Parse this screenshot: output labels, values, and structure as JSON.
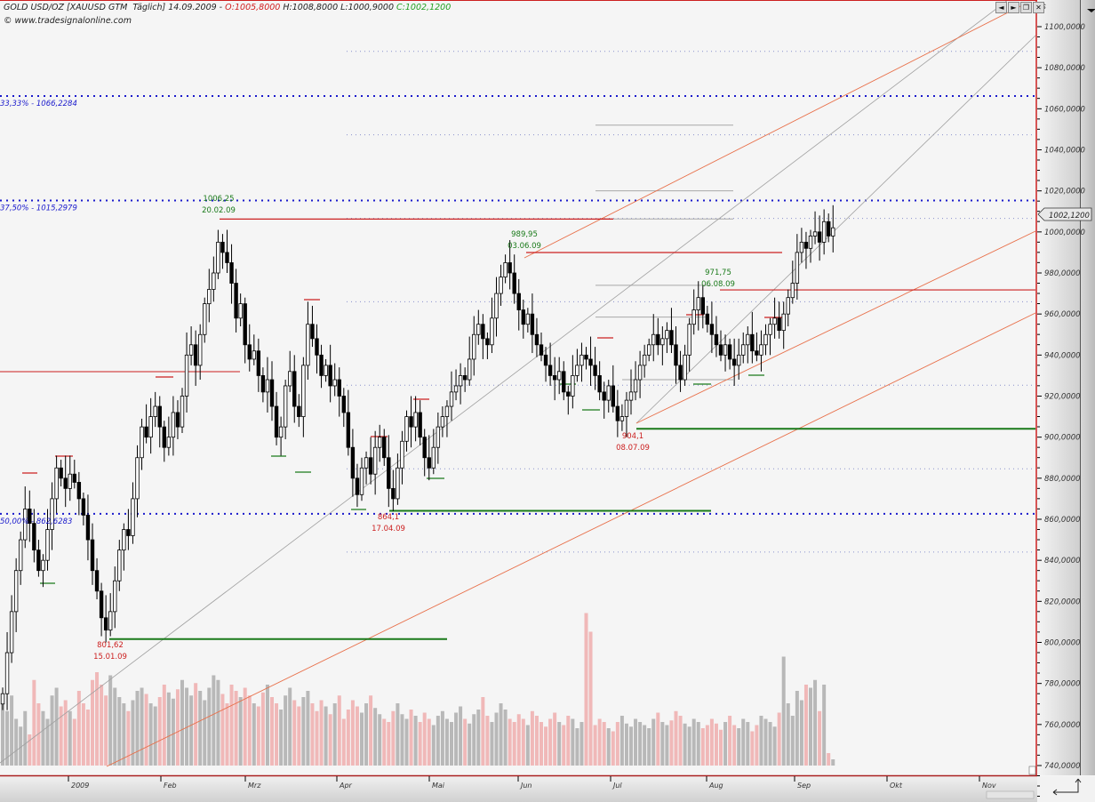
{
  "header": {
    "title": "GOLD USD/OZ [XAUUSD GTM  Täglich] 14.09.2009 - ",
    "open": "O:1005,8000",
    "high": "H:1008,8000",
    "low": "L:1000,9000",
    "close": "C:1002,1200",
    "site": "www.tradesignalonline.com"
  },
  "window_controls": [
    "◄",
    "►",
    "❐",
    "✕"
  ],
  "colors": {
    "up": "#ffffff",
    "down": "#000000",
    "support": "#1a7a1a",
    "resistance": "#cc2020",
    "fib": "#1a1acc",
    "trend_orange": "#e8704a",
    "trend_gray": "#a0a0a0",
    "vol_up": "#b8b8b8",
    "vol_down": "#f0b8b8"
  },
  "chart_data": {
    "type": "candlestick",
    "currency_label": "$",
    "ylim": [
      740,
      1100
    ],
    "y_ticks": [
      "1100,0000",
      "1080,0000",
      "1060,0000",
      "1040,0000",
      "1020,0000",
      "1000,0000",
      "980,0000",
      "960,0000",
      "940,0000",
      "920,0000",
      "900,0000",
      "880,0000",
      "860,0000",
      "840,0000",
      "820,0000",
      "800,0000",
      "780,0000",
      "760,0000",
      "740,0000"
    ],
    "x_ticks": [
      "2009",
      "Feb",
      "Mrz",
      "Apr",
      "Mai",
      "Jun",
      "Jul",
      "Aug",
      "Sep",
      "Okt",
      "Nov"
    ],
    "last_price_label": "1002,1200",
    "closes": [
      775,
      795,
      815,
      835,
      850,
      865,
      858,
      845,
      835,
      840,
      855,
      870,
      885,
      880,
      875,
      882,
      878,
      870,
      862,
      850,
      835,
      825,
      812,
      806,
      815,
      830,
      845,
      855,
      852,
      870,
      890,
      905,
      900,
      910,
      915,
      905,
      895,
      900,
      912,
      905,
      920,
      940,
      945,
      935,
      950,
      965,
      972,
      980,
      995,
      990,
      985,
      975,
      958,
      965,
      945,
      938,
      942,
      930,
      922,
      928,
      915,
      900,
      905,
      925,
      932,
      915,
      910,
      935,
      955,
      948,
      940,
      930,
      935,
      925,
      928,
      920,
      912,
      895,
      880,
      872,
      885,
      890,
      882,
      895,
      900,
      890,
      875,
      870,
      885,
      898,
      910,
      905,
      912,
      900,
      890,
      885,
      895,
      905,
      910,
      915,
      922,
      925,
      930,
      928,
      938,
      950,
      955,
      948,
      945,
      958,
      970,
      978,
      985,
      980,
      970,
      962,
      955,
      960,
      950,
      945,
      940,
      935,
      930,
      928,
      932,
      922,
      920,
      930,
      935,
      940,
      938,
      935,
      930,
      922,
      918,
      925,
      915,
      908,
      910,
      918,
      922,
      928,
      935,
      940,
      945,
      950,
      945,
      948,
      952,
      945,
      935,
      928,
      940,
      955,
      962,
      968,
      960,
      955,
      950,
      945,
      940,
      945,
      938,
      935,
      940,
      945,
      950,
      942,
      940,
      945,
      950,
      955,
      958,
      952,
      960,
      968,
      975,
      990,
      995,
      992,
      998,
      1000,
      995,
      1005,
      998,
      1002
    ],
    "volume_relative": [
      40,
      35,
      45,
      30,
      25,
      35,
      20,
      55,
      40,
      35,
      30,
      45,
      50,
      38,
      42,
      35,
      30,
      48,
      40,
      36,
      55,
      60,
      52,
      45,
      58,
      50,
      44,
      40,
      35,
      42,
      48,
      50,
      46,
      40,
      38,
      44,
      52,
      47,
      43,
      49,
      55,
      50,
      45,
      53,
      48,
      42,
      50,
      58,
      55,
      46,
      40,
      52,
      48,
      44,
      50,
      45,
      40,
      38,
      47,
      52,
      44,
      40,
      36,
      45,
      50,
      42,
      38,
      44,
      48,
      40,
      35,
      42,
      38,
      33,
      40,
      45,
      30,
      36,
      42,
      38,
      34,
      40,
      45,
      37,
      33,
      30,
      28,
      35,
      40,
      33,
      30,
      36,
      32,
      28,
      34,
      30,
      26,
      32,
      35,
      30,
      28,
      34,
      38,
      30,
      27,
      33,
      36,
      44,
      32,
      28,
      34,
      40,
      36,
      30,
      28,
      33,
      30,
      26,
      35,
      32,
      28,
      25,
      30,
      34,
      28,
      26,
      32,
      30,
      24,
      28,
      98,
      86,
      26,
      30,
      28,
      24,
      22,
      28,
      32,
      27,
      25,
      30,
      28,
      26,
      24,
      30,
      34,
      28,
      26,
      29,
      35,
      32,
      27,
      25,
      30,
      28,
      24,
      26,
      30,
      27,
      23,
      28,
      32,
      26,
      24,
      30,
      28,
      22,
      26,
      32,
      30,
      28,
      25,
      34,
      70,
      40,
      32,
      48,
      42,
      52,
      50,
      55,
      35,
      52,
      8,
      4
    ],
    "levels": [
      {
        "label": "33,33% - 1066,2284",
        "value": 1066.2284,
        "kind": "fib"
      },
      {
        "label": "37,50% - 1015,2979",
        "value": 1015.2979,
        "kind": "fib"
      },
      {
        "label": "50,00% - 862,6283",
        "value": 862.6283,
        "kind": "fib"
      }
    ],
    "swings": [
      {
        "price": "1006,25",
        "date": "20.02.09",
        "type": "high",
        "value": 1006.25
      },
      {
        "price": "989,95",
        "date": "03.06.09",
        "type": "high",
        "value": 989.95
      },
      {
        "price": "971,75",
        "date": "06.08.09",
        "type": "high",
        "value": 971.75
      },
      {
        "price": "904,1",
        "date": "08.07.09",
        "type": "low",
        "value": 904.1
      },
      {
        "price": "864,1",
        "date": "17.04.09",
        "type": "low",
        "value": 864.1
      },
      {
        "price": "801,62",
        "date": "15.01.09",
        "type": "low",
        "value": 801.62
      }
    ]
  }
}
